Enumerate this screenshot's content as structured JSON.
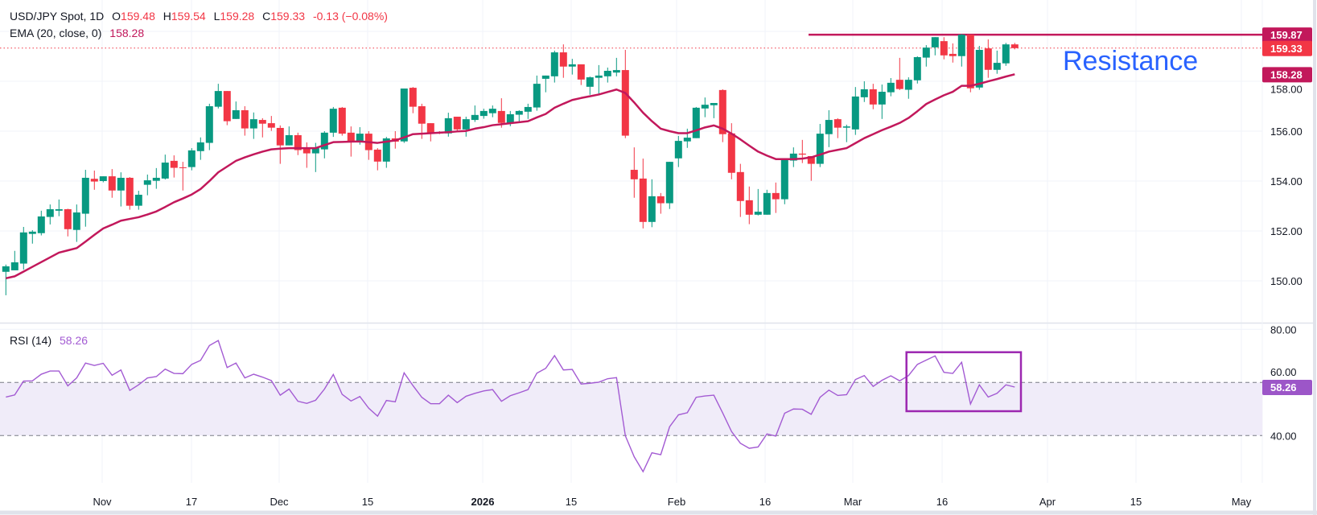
{
  "header": {
    "symbol": "USD/JPY Spot, 1D",
    "o_label": "O",
    "open": "159.48",
    "h_label": "H",
    "high": "159.54",
    "l_label": "L",
    "low": "159.28",
    "c_label": "C",
    "close": "159.33",
    "change": "-0.13 (−0.08%)"
  },
  "ema_legend": {
    "label": "EMA (20, close, 0)",
    "value": "158.28"
  },
  "rsi_legend": {
    "label": "RSI (14)",
    "value": "58.26"
  },
  "price_axis": {
    "ticks": [
      "150.00",
      "152.00",
      "154.00",
      "156.00",
      "158.00"
    ],
    "tags": {
      "resistance": "159.87",
      "last": "159.33",
      "ema": "158.28"
    }
  },
  "rsi_axis": {
    "ticks": [
      "80.00",
      "60.00",
      "40.00"
    ],
    "tag": "58.26"
  },
  "x_axis": {
    "ticks": [
      "Nov",
      "17",
      "Dec",
      "15",
      "2026",
      "15",
      "Feb",
      "16",
      "Mar",
      "16",
      "Apr",
      "15",
      "May"
    ]
  },
  "annotation": {
    "text": "Resistance"
  },
  "colors": {
    "up": "#089981",
    "down": "#f23645",
    "ema": "#c2185b",
    "rsi": "#a35bd3",
    "rsi_band": "#f0ecf9",
    "resistance": "#c2185b",
    "annotation": "#2962ff",
    "rsi_box": "#9c27b0",
    "grid": "#f0f3fa"
  },
  "chart_data": {
    "type": "candlestick",
    "price_ylim": [
      148.32,
      161.26
    ],
    "rsi_ylim": [
      22.2,
      82.2
    ],
    "rsi_bands": [
      40,
      60
    ],
    "resistance_level": 159.87,
    "last_price": 159.33,
    "grid": true,
    "ohlc": [
      [
        150.36,
        150.65,
        149.42,
        150.58
      ],
      [
        150.42,
        151.2,
        150.42,
        150.74
      ],
      [
        150.69,
        152.16,
        150.45,
        151.94
      ],
      [
        151.88,
        152.03,
        151.49,
        151.97
      ],
      [
        151.91,
        152.81,
        151.82,
        152.58
      ],
      [
        152.56,
        153.06,
        152.26,
        152.87
      ],
      [
        152.81,
        153.26,
        152.59,
        152.87
      ],
      [
        152.87,
        152.89,
        151.78,
        152.07
      ],
      [
        152.04,
        153.06,
        151.56,
        152.74
      ],
      [
        152.69,
        154.45,
        152.17,
        154.13
      ],
      [
        154.09,
        154.42,
        153.65,
        153.98
      ],
      [
        154.0,
        154.19,
        153.95,
        154.19
      ],
      [
        154.19,
        154.48,
        153.33,
        153.62
      ],
      [
        153.62,
        154.35,
        152.98,
        154.13
      ],
      [
        154.13,
        154.16,
        152.85,
        153.01
      ],
      [
        153.01,
        153.61,
        152.85,
        153.45
      ],
      [
        153.85,
        154.26,
        153.43,
        154.03
      ],
      [
        154.01,
        154.52,
        153.69,
        154.13
      ],
      [
        154.1,
        155.06,
        154.06,
        154.74
      ],
      [
        154.81,
        155.03,
        154.14,
        154.53
      ],
      [
        154.55,
        154.77,
        153.62,
        154.53
      ],
      [
        154.56,
        155.32,
        154.43,
        155.23
      ],
      [
        155.2,
        155.75,
        154.85,
        155.55
      ],
      [
        155.53,
        157.1,
        155.24,
        157.0
      ],
      [
        156.98,
        157.9,
        156.91,
        157.61
      ],
      [
        157.61,
        157.61,
        156.24,
        156.4
      ],
      [
        156.49,
        157.19,
        156.49,
        156.84
      ],
      [
        156.84,
        157.0,
        155.82,
        156.11
      ],
      [
        156.11,
        156.75,
        155.69,
        156.48
      ],
      [
        156.45,
        156.52,
        155.75,
        156.3
      ],
      [
        156.32,
        156.61,
        156.01,
        156.14
      ],
      [
        156.13,
        156.23,
        154.69,
        155.43
      ],
      [
        155.43,
        156.19,
        155.43,
        155.84
      ],
      [
        155.84,
        155.94,
        155.04,
        155.24
      ],
      [
        155.32,
        155.55,
        154.53,
        155.11
      ],
      [
        155.11,
        155.53,
        154.36,
        155.32
      ],
      [
        155.27,
        156.0,
        154.91,
        155.94
      ],
      [
        155.94,
        156.97,
        155.77,
        156.9
      ],
      [
        156.94,
        156.97,
        155.82,
        155.9
      ],
      [
        155.94,
        156.19,
        154.98,
        155.59
      ],
      [
        155.59,
        156.16,
        155.46,
        155.9
      ],
      [
        155.9,
        156.0,
        154.85,
        155.24
      ],
      [
        155.26,
        155.32,
        154.43,
        154.78
      ],
      [
        154.78,
        155.77,
        154.53,
        155.71
      ],
      [
        155.71,
        156.0,
        155.3,
        155.58
      ],
      [
        155.59,
        157.71,
        155.53,
        157.71
      ],
      [
        157.74,
        157.77,
        156.72,
        156.98
      ],
      [
        157.0,
        157.1,
        155.69,
        156.3
      ],
      [
        156.32,
        156.32,
        155.59,
        155.93
      ],
      [
        155.96,
        156.0,
        155.88,
        155.91
      ],
      [
        155.91,
        156.74,
        155.78,
        156.52
      ],
      [
        156.58,
        156.58,
        155.97,
        156.07
      ],
      [
        156.07,
        156.58,
        155.78,
        156.48
      ],
      [
        156.45,
        157.03,
        156.37,
        156.65
      ],
      [
        156.61,
        156.9,
        156.5,
        156.81
      ],
      [
        156.72,
        157.03,
        156.56,
        156.9
      ],
      [
        156.81,
        157.32,
        156.14,
        156.33
      ],
      [
        156.33,
        156.81,
        156.2,
        156.68
      ],
      [
        156.66,
        156.84,
        156.33,
        156.81
      ],
      [
        156.78,
        157.1,
        156.49,
        156.97
      ],
      [
        156.95,
        158.23,
        156.82,
        157.9
      ],
      [
        158.1,
        158.23,
        157.56,
        158.23
      ],
      [
        158.2,
        159.23,
        157.95,
        159.16
      ],
      [
        159.16,
        159.48,
        158.14,
        158.59
      ],
      [
        158.59,
        158.9,
        158.27,
        158.68
      ],
      [
        158.68,
        158.68,
        157.85,
        158.07
      ],
      [
        157.78,
        158.19,
        157.46,
        158.16
      ],
      [
        158.14,
        158.65,
        157.49,
        158.23
      ],
      [
        158.2,
        158.55,
        157.95,
        158.42
      ],
      [
        158.35,
        158.94,
        158.2,
        158.45
      ],
      [
        158.45,
        159.26,
        155.72,
        155.82
      ],
      [
        154.45,
        155.35,
        153.33,
        154.07
      ],
      [
        154.1,
        154.9,
        152.1,
        152.36
      ],
      [
        152.36,
        154.07,
        152.15,
        153.39
      ],
      [
        153.39,
        153.52,
        152.69,
        153.11
      ],
      [
        153.11,
        154.77,
        152.88,
        154.77
      ],
      [
        154.91,
        155.81,
        154.56,
        155.61
      ],
      [
        155.59,
        156.1,
        155.33,
        155.74
      ],
      [
        155.72,
        156.97,
        155.72,
        156.94
      ],
      [
        156.91,
        157.35,
        156.56,
        157.06
      ],
      [
        157.04,
        157.13,
        156.52,
        157.13
      ],
      [
        157.65,
        157.68,
        155.56,
        155.88
      ],
      [
        155.91,
        156.32,
        154.07,
        154.33
      ],
      [
        154.36,
        154.69,
        152.56,
        153.2
      ],
      [
        153.23,
        153.78,
        152.27,
        152.65
      ],
      [
        152.65,
        153.68,
        152.62,
        152.77
      ],
      [
        152.65,
        153.65,
        152.65,
        153.52
      ],
      [
        153.52,
        153.94,
        152.72,
        153.27
      ],
      [
        153.27,
        154.85,
        153.07,
        154.85
      ],
      [
        154.82,
        155.35,
        154.56,
        155.1
      ],
      [
        155.1,
        155.65,
        154.72,
        155.06
      ],
      [
        155.0,
        155.0,
        154.01,
        154.69
      ],
      [
        154.69,
        156.29,
        154.56,
        155.9
      ],
      [
        155.88,
        156.84,
        155.36,
        156.45
      ],
      [
        156.48,
        156.52,
        155.72,
        156.14
      ],
      [
        156.14,
        156.26,
        155.56,
        156.19
      ],
      [
        156.07,
        157.77,
        155.85,
        157.39
      ],
      [
        157.36,
        158.0,
        157.17,
        157.68
      ],
      [
        157.68,
        157.9,
        156.88,
        157.07
      ],
      [
        157.07,
        157.87,
        156.49,
        157.58
      ],
      [
        157.56,
        158.13,
        157.4,
        157.94
      ],
      [
        158.06,
        158.94,
        157.65,
        157.69
      ],
      [
        157.66,
        158.16,
        157.3,
        158.06
      ],
      [
        158.04,
        159.0,
        157.91,
        158.97
      ],
      [
        158.95,
        159.45,
        158.59,
        159.35
      ],
      [
        159.36,
        159.77,
        159.04,
        159.77
      ],
      [
        159.61,
        159.77,
        158.88,
        159.04
      ],
      [
        159.1,
        159.52,
        158.75,
        159.01
      ],
      [
        159.01,
        159.9,
        158.59,
        159.87
      ],
      [
        159.87,
        159.87,
        157.56,
        157.72
      ],
      [
        157.75,
        159.42,
        157.66,
        159.26
      ],
      [
        159.32,
        159.68,
        158.14,
        158.46
      ],
      [
        158.46,
        159.23,
        158.3,
        158.74
      ],
      [
        158.72,
        159.54,
        158.62,
        159.48
      ],
      [
        159.48,
        159.54,
        159.28,
        159.33
      ]
    ],
    "ema": [
      150.1,
      150.18,
      150.37,
      150.56,
      150.75,
      150.94,
      151.13,
      151.22,
      151.31,
      151.57,
      151.84,
      152.1,
      152.25,
      152.41,
      152.48,
      152.55,
      152.66,
      152.78,
      152.96,
      153.15,
      153.3,
      153.46,
      153.68,
      154.0,
      154.35,
      154.58,
      154.81,
      154.95,
      155.07,
      155.18,
      155.27,
      155.3,
      155.32,
      155.32,
      155.32,
      155.32,
      155.44,
      155.56,
      155.57,
      155.58,
      155.59,
      155.56,
      155.53,
      155.58,
      155.63,
      155.75,
      155.88,
      155.9,
      155.92,
      155.94,
      155.96,
      155.99,
      156.01,
      156.1,
      156.16,
      156.24,
      156.28,
      156.32,
      156.36,
      156.4,
      156.55,
      156.69,
      156.94,
      157.1,
      157.25,
      157.33,
      157.4,
      157.47,
      157.57,
      157.67,
      157.53,
      157.15,
      156.74,
      156.4,
      156.1,
      156.0,
      155.92,
      155.92,
      156.03,
      156.15,
      156.23,
      156.1,
      155.9,
      155.67,
      155.42,
      155.18,
      155.02,
      154.88,
      154.88,
      154.88,
      154.9,
      154.95,
      155.06,
      155.18,
      155.25,
      155.32,
      155.52,
      155.72,
      155.88,
      156.04,
      156.18,
      156.33,
      156.53,
      156.8,
      157.09,
      157.27,
      157.44,
      157.58,
      157.82,
      157.82,
      157.9,
      158.0,
      158.09,
      158.19,
      158.28
    ],
    "rsi": [
      54.5,
      55.3,
      60.5,
      60.6,
      63.1,
      64.3,
      64.3,
      58.7,
      61.7,
      67.3,
      66.4,
      67.2,
      62.7,
      64.7,
      57.0,
      59.1,
      61.7,
      62.2,
      65.0,
      63.4,
      63.3,
      66.8,
      68.3,
      73.9,
      75.8,
      65.6,
      67.3,
      61.7,
      63.1,
      62.0,
      60.7,
      55.2,
      57.5,
      52.9,
      52.1,
      53.3,
      57.5,
      63.0,
      55.5,
      53.0,
      54.7,
      50.3,
      47.3,
      53.2,
      52.7,
      63.6,
      58.8,
      54.4,
      52.0,
      52.0,
      55.2,
      52.4,
      54.8,
      55.9,
      56.8,
      57.3,
      52.9,
      55.0,
      56.1,
      57.3,
      63.5,
      65.3,
      70.1,
      64.7,
      64.9,
      59.4,
      59.7,
      60.1,
      61.4,
      61.8,
      39.9,
      32.0,
      26.4,
      33.5,
      32.8,
      43.3,
      47.8,
      48.6,
      54.4,
      54.9,
      55.2,
      48.5,
      41.5,
      37.1,
      35.2,
      35.7,
      40.6,
      39.8,
      48.4,
      50.0,
      49.9,
      48.0,
      54.4,
      57.1,
      55.1,
      55.4,
      61.1,
      62.6,
      58.5,
      60.8,
      62.5,
      60.6,
      62.6,
      66.8,
      68.4,
      70.0,
      63.8,
      63.4,
      67.6,
      51.9,
      59.1,
      54.5,
      55.9,
      59.1,
      58.26
    ]
  }
}
